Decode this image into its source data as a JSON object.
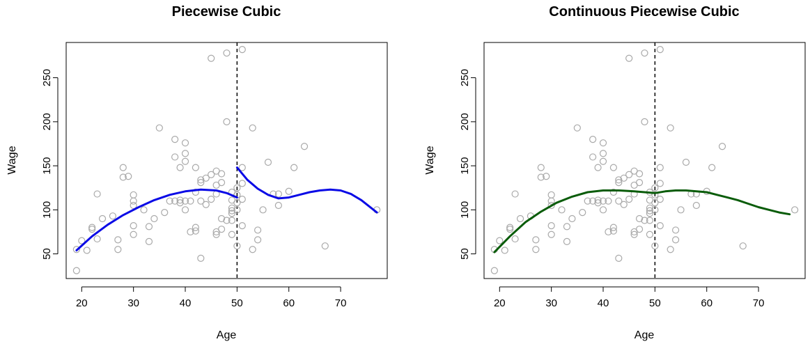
{
  "chart_data": [
    {
      "type": "scatter",
      "title": "Piecewise Cubic",
      "xlabel": "Age",
      "ylabel": "Wage",
      "xlim": [
        17,
        79
      ],
      "ylim": [
        22,
        290
      ],
      "xticks": [
        "20",
        "30",
        "40",
        "50",
        "60",
        "70"
      ],
      "yticks": [
        "50",
        "100",
        "150",
        "200",
        "250"
      ],
      "knot": 50,
      "points_color": "#a9a9a9",
      "fit_color": "#0a0ae6",
      "fit_segments": [
        [
          [
            19,
            54
          ],
          [
            22,
            70
          ],
          [
            25,
            83
          ],
          [
            28,
            94
          ],
          [
            31,
            103
          ],
          [
            34,
            111
          ],
          [
            37,
            117
          ],
          [
            40,
            121
          ],
          [
            43,
            123
          ],
          [
            46,
            122
          ],
          [
            48,
            119
          ],
          [
            50,
            114
          ]
        ],
        [
          [
            50,
            148
          ],
          [
            52,
            134
          ],
          [
            54,
            124
          ],
          [
            56,
            117
          ],
          [
            58,
            113
          ],
          [
            60,
            114
          ],
          [
            62,
            117
          ],
          [
            64,
            120
          ],
          [
            66,
            122
          ],
          [
            68,
            123
          ],
          [
            70,
            122
          ],
          [
            72,
            118
          ],
          [
            74,
            111
          ],
          [
            77,
            97
          ]
        ]
      ],
      "points": [
        [
          19,
          31
        ],
        [
          19,
          55
        ],
        [
          20,
          65
        ],
        [
          21,
          54
        ],
        [
          22,
          80
        ],
        [
          22,
          78
        ],
        [
          23,
          118
        ],
        [
          23,
          67
        ],
        [
          24,
          90
        ],
        [
          26,
          93
        ],
        [
          27,
          66
        ],
        [
          27,
          55
        ],
        [
          28,
          148
        ],
        [
          28,
          137
        ],
        [
          29,
          138
        ],
        [
          30,
          117
        ],
        [
          30,
          110
        ],
        [
          30,
          105
        ],
        [
          30,
          72
        ],
        [
          30,
          82
        ],
        [
          32,
          100
        ],
        [
          33,
          64
        ],
        [
          33,
          81
        ],
        [
          34,
          90
        ],
        [
          35,
          193
        ],
        [
          36,
          97
        ],
        [
          37,
          110
        ],
        [
          38,
          180
        ],
        [
          38,
          160
        ],
        [
          38,
          110
        ],
        [
          39,
          148
        ],
        [
          39,
          111
        ],
        [
          39,
          108
        ],
        [
          40,
          176
        ],
        [
          40,
          164
        ],
        [
          40,
          155
        ],
        [
          40,
          110
        ],
        [
          40,
          100
        ],
        [
          41,
          75
        ],
        [
          41,
          110
        ],
        [
          42,
          148
        ],
        [
          42,
          120
        ],
        [
          42,
          80
        ],
        [
          42,
          76
        ],
        [
          43,
          134
        ],
        [
          43,
          131
        ],
        [
          43,
          110
        ],
        [
          43,
          45
        ],
        [
          44,
          136
        ],
        [
          44,
          106
        ],
        [
          45,
          272
        ],
        [
          45,
          140
        ],
        [
          45,
          112
        ],
        [
          46,
          144
        ],
        [
          46,
          128
        ],
        [
          46,
          118
        ],
        [
          46,
          75
        ],
        [
          46,
          72
        ],
        [
          47,
          141
        ],
        [
          47,
          131
        ],
        [
          47,
          90
        ],
        [
          47,
          78
        ],
        [
          48,
          278
        ],
        [
          48,
          200
        ],
        [
          48,
          88
        ],
        [
          49,
          120
        ],
        [
          49,
          111
        ],
        [
          49,
          102
        ],
        [
          49,
          99
        ],
        [
          49,
          96
        ],
        [
          49,
          88
        ],
        [
          49,
          72
        ],
        [
          50,
          125
        ],
        [
          50,
          117
        ],
        [
          50,
          108
        ],
        [
          50,
          100
        ],
        [
          50,
          59
        ],
        [
          51,
          282
        ],
        [
          51,
          148
        ],
        [
          51,
          130
        ],
        [
          51,
          112
        ],
        [
          51,
          82
        ],
        [
          53,
          193
        ],
        [
          53,
          55
        ],
        [
          54,
          77
        ],
        [
          54,
          66
        ],
        [
          55,
          100
        ],
        [
          56,
          154
        ],
        [
          57,
          118
        ],
        [
          58,
          118
        ],
        [
          58,
          105
        ],
        [
          60,
          121
        ],
        [
          61,
          148
        ],
        [
          63,
          172
        ],
        [
          67,
          59
        ],
        [
          77,
          100
        ]
      ]
    },
    {
      "type": "scatter",
      "title": "Continuous Piecewise Cubic",
      "xlabel": "Age",
      "ylabel": "Wage",
      "xlim": [
        17,
        79
      ],
      "ylim": [
        22,
        290
      ],
      "xticks": [
        "20",
        "30",
        "40",
        "50",
        "60",
        "70"
      ],
      "yticks": [
        "50",
        "100",
        "150",
        "200",
        "250"
      ],
      "knot": 50,
      "points_color": "#a9a9a9",
      "fit_color": "#0a5c0a",
      "fit_segments": [
        [
          [
            19,
            52
          ],
          [
            22,
            70
          ],
          [
            25,
            86
          ],
          [
            28,
            98
          ],
          [
            31,
            108
          ],
          [
            34,
            115
          ],
          [
            37,
            120
          ],
          [
            40,
            122
          ],
          [
            43,
            122
          ],
          [
            46,
            121
          ],
          [
            48,
            120
          ],
          [
            50,
            119
          ],
          [
            52,
            121
          ],
          [
            54,
            122
          ],
          [
            56,
            122
          ],
          [
            58,
            121
          ],
          [
            60,
            120
          ],
          [
            62,
            117
          ],
          [
            64,
            114
          ],
          [
            66,
            111
          ],
          [
            68,
            107
          ],
          [
            70,
            103
          ],
          [
            72,
            100
          ],
          [
            74,
            97
          ],
          [
            76,
            95
          ]
        ]
      ],
      "points": [
        [
          19,
          31
        ],
        [
          19,
          55
        ],
        [
          20,
          65
        ],
        [
          21,
          54
        ],
        [
          22,
          80
        ],
        [
          22,
          78
        ],
        [
          23,
          118
        ],
        [
          23,
          67
        ],
        [
          24,
          90
        ],
        [
          26,
          93
        ],
        [
          27,
          66
        ],
        [
          27,
          55
        ],
        [
          28,
          148
        ],
        [
          28,
          137
        ],
        [
          29,
          138
        ],
        [
          30,
          117
        ],
        [
          30,
          110
        ],
        [
          30,
          105
        ],
        [
          30,
          72
        ],
        [
          30,
          82
        ],
        [
          32,
          100
        ],
        [
          33,
          64
        ],
        [
          33,
          81
        ],
        [
          34,
          90
        ],
        [
          35,
          193
        ],
        [
          36,
          97
        ],
        [
          37,
          110
        ],
        [
          38,
          180
        ],
        [
          38,
          160
        ],
        [
          38,
          110
        ],
        [
          39,
          148
        ],
        [
          39,
          111
        ],
        [
          39,
          108
        ],
        [
          40,
          176
        ],
        [
          40,
          164
        ],
        [
          40,
          155
        ],
        [
          40,
          110
        ],
        [
          40,
          100
        ],
        [
          41,
          75
        ],
        [
          41,
          110
        ],
        [
          42,
          148
        ],
        [
          42,
          120
        ],
        [
          42,
          80
        ],
        [
          42,
          76
        ],
        [
          43,
          134
        ],
        [
          43,
          131
        ],
        [
          43,
          110
        ],
        [
          43,
          45
        ],
        [
          44,
          136
        ],
        [
          44,
          106
        ],
        [
          45,
          272
        ],
        [
          45,
          140
        ],
        [
          45,
          112
        ],
        [
          46,
          144
        ],
        [
          46,
          128
        ],
        [
          46,
          118
        ],
        [
          46,
          75
        ],
        [
          46,
          72
        ],
        [
          47,
          141
        ],
        [
          47,
          131
        ],
        [
          47,
          90
        ],
        [
          47,
          78
        ],
        [
          48,
          278
        ],
        [
          48,
          200
        ],
        [
          48,
          88
        ],
        [
          49,
          120
        ],
        [
          49,
          111
        ],
        [
          49,
          102
        ],
        [
          49,
          99
        ],
        [
          49,
          96
        ],
        [
          49,
          88
        ],
        [
          49,
          72
        ],
        [
          50,
          125
        ],
        [
          50,
          117
        ],
        [
          50,
          108
        ],
        [
          50,
          100
        ],
        [
          50,
          59
        ],
        [
          51,
          282
        ],
        [
          51,
          148
        ],
        [
          51,
          130
        ],
        [
          51,
          112
        ],
        [
          51,
          82
        ],
        [
          53,
          193
        ],
        [
          53,
          55
        ],
        [
          54,
          77
        ],
        [
          54,
          66
        ],
        [
          55,
          100
        ],
        [
          56,
          154
        ],
        [
          57,
          118
        ],
        [
          58,
          118
        ],
        [
          58,
          105
        ],
        [
          60,
          121
        ],
        [
          61,
          148
        ],
        [
          63,
          172
        ],
        [
          67,
          59
        ],
        [
          77,
          100
        ]
      ]
    }
  ]
}
